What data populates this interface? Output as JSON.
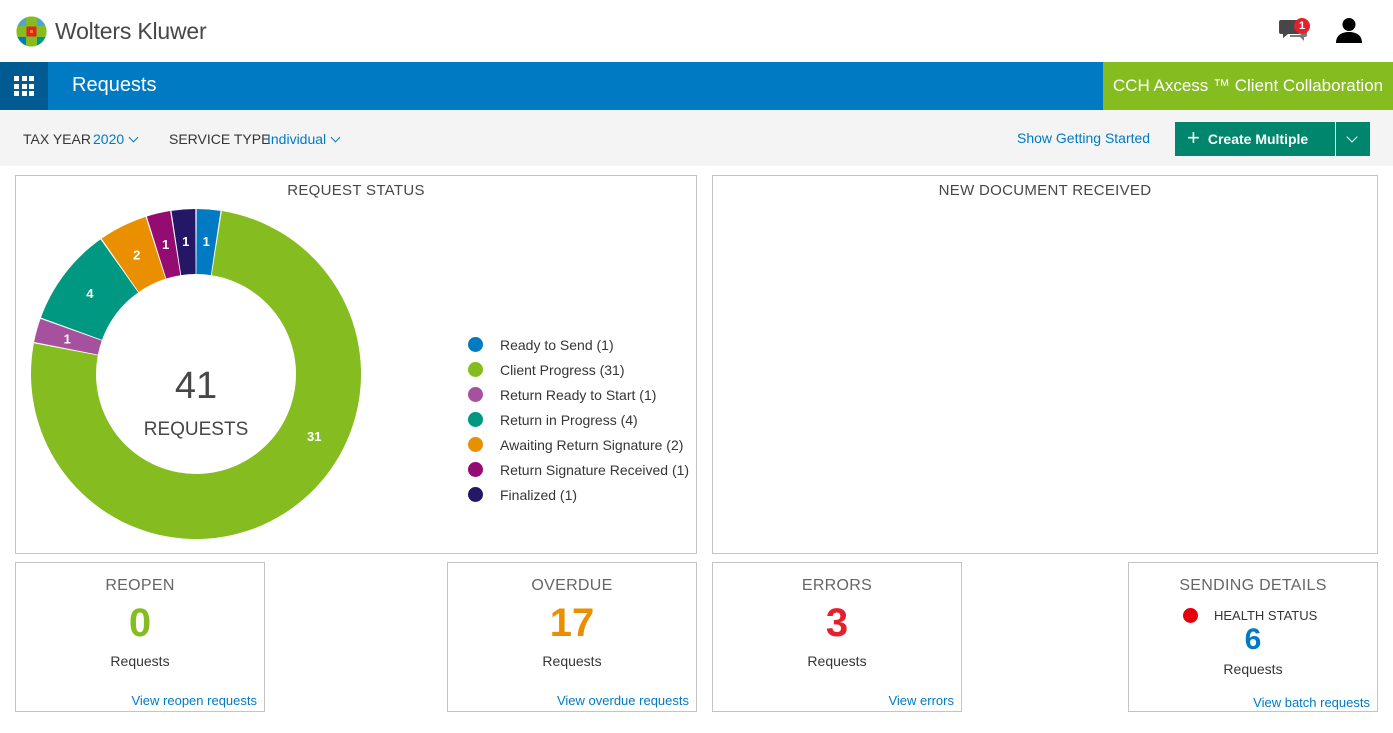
{
  "header": {
    "brand": "Wolters Kluwer",
    "notification_count": "1"
  },
  "nav": {
    "title": "Requests",
    "product": "CCH Axcess ™ Client Collaboration"
  },
  "filters": {
    "tax_year_label": "TAX YEAR",
    "tax_year_value": "2020",
    "service_type_label": "SERVICE TYPE",
    "service_type_value": "Individual",
    "getting_started": "Show Getting Started",
    "create_label": "Create Multiple"
  },
  "request_status": {
    "title": "REQUEST STATUS",
    "total": "41",
    "total_label": "REQUESTS"
  },
  "chart_data": {
    "type": "pie",
    "categories": [
      "Ready to Send",
      "Client Progress",
      "Return Ready to Start",
      "Return in Progress",
      "Awaiting Return Signature",
      "Return Signature Received",
      "Finalized"
    ],
    "values": [
      1,
      31,
      1,
      4,
      2,
      1,
      1
    ],
    "colors": [
      "#007ac3",
      "#85bc20",
      "#a6519e",
      "#009881",
      "#ea8f00",
      "#940c72",
      "#241866"
    ],
    "legend_labels": [
      "Ready to Send (1)",
      "Client Progress (31)",
      "Return Ready to Start (1)",
      "Return in Progress (4)",
      "Awaiting Return Signature (2)",
      "Return Signature Received (1)",
      "Finalized (1)"
    ],
    "legend": "right",
    "donut": true
  },
  "new_document": {
    "title": "NEW DOCUMENT RECEIVED"
  },
  "cards": {
    "reopen": {
      "title": "REOPEN",
      "value": "0",
      "label": "Requests",
      "link": "View reopen requests",
      "color": "#85bc20"
    },
    "overdue": {
      "title": "OVERDUE",
      "value": "17",
      "label": "Requests",
      "link": "View overdue requests",
      "color": "#ea8f00"
    },
    "errors": {
      "title": "ERRORS",
      "value": "3",
      "label": "Requests",
      "link": "View errors",
      "color": "#e5202e"
    },
    "sending": {
      "title": "SENDING DETAILS",
      "health": "HEALTH STATUS",
      "value": "6",
      "label": "Requests",
      "link": "View batch requests",
      "color": "#007ac3"
    }
  }
}
